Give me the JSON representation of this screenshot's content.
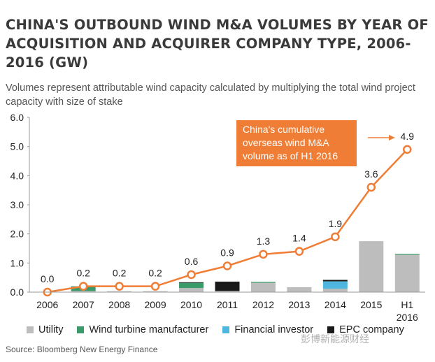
{
  "title": "CHINA'S OUTBOUND WIND M&A VOLUMES BY YEAR OF ACQUISITION AND ACQUIRER COMPANY TYPE, 2006-2016 (GW)",
  "subtitle": "Volumes represent attributable wind capacity calculated by multiplying the total wind project capacity with size of stake",
  "source": "Source:  Bloomberg New Energy Finance",
  "watermark": "彭博新能源财经",
  "callout": [
    "China's cumulative",
    "overseas wind M&A",
    "volume as of H1 2016"
  ],
  "colors": {
    "Utility": "#bdbdbd",
    "Wind turbine manufacturer": "#3a9a6a",
    "Financial investor": "#4fb6e0",
    "EPC company": "#1a1a1a",
    "cumulative_line": "#f07d35",
    "callout_bg": "#f07d35"
  },
  "chart_data": {
    "type": "bar",
    "stacked": true,
    "categories": [
      "2006",
      "2007",
      "2008",
      "2009",
      "2010",
      "2011",
      "2012",
      "2013",
      "2014",
      "2015",
      "H1 2016"
    ],
    "ylim": [
      0,
      6
    ],
    "yticks": [
      "0.0",
      "1.0",
      "2.0",
      "3.0",
      "4.0",
      "5.0",
      "6.0"
    ],
    "xlabel": "",
    "ylabel": "",
    "grid": false,
    "legend_position": "bottom",
    "series": [
      {
        "name": "Utility",
        "values": [
          0,
          0.04,
          0.03,
          0.03,
          0.14,
          0.04,
          0.32,
          0.17,
          0.12,
          1.75,
          1.28
        ]
      },
      {
        "name": "Wind turbine manufacturer",
        "values": [
          0,
          0.16,
          0,
          0,
          0.18,
          0,
          0.03,
          0,
          0,
          0,
          0.03
        ]
      },
      {
        "name": "Financial investor",
        "values": [
          0,
          0,
          0,
          0,
          0,
          0,
          0,
          0,
          0.25,
          0,
          0
        ]
      },
      {
        "name": "EPC company",
        "values": [
          0,
          0,
          0,
          0,
          0.02,
          0.32,
          0,
          0,
          0.05,
          0,
          0
        ]
      }
    ],
    "cumulative_line": {
      "values": [
        0.0,
        0.2,
        0.2,
        0.2,
        0.6,
        0.9,
        1.3,
        1.4,
        1.9,
        3.6,
        4.9
      ],
      "labels": [
        "0.0",
        "0.2",
        "0.2",
        "0.2",
        "0.6",
        "0.9",
        "1.3",
        "1.4",
        "1.9",
        "3.6",
        "4.9"
      ]
    }
  }
}
